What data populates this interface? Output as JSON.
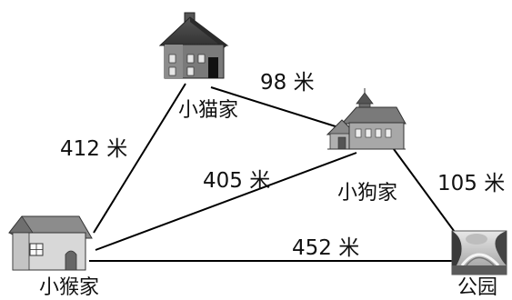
{
  "places": {
    "cat": "小猫家",
    "dog": "小狗家",
    "monkey": "小猴家",
    "park": "公园"
  },
  "distances": {
    "cat_dog": "98 米",
    "monkey_cat": "412 米",
    "monkey_dog": "405 米",
    "dog_park": "105 米",
    "monkey_park": "452 米"
  },
  "icons": {
    "cat_home": "dark-gray-house-icon",
    "dog_home": "schoolhouse-icon",
    "monkey_home": "small-house-icon",
    "park": "park-photo-icon"
  }
}
